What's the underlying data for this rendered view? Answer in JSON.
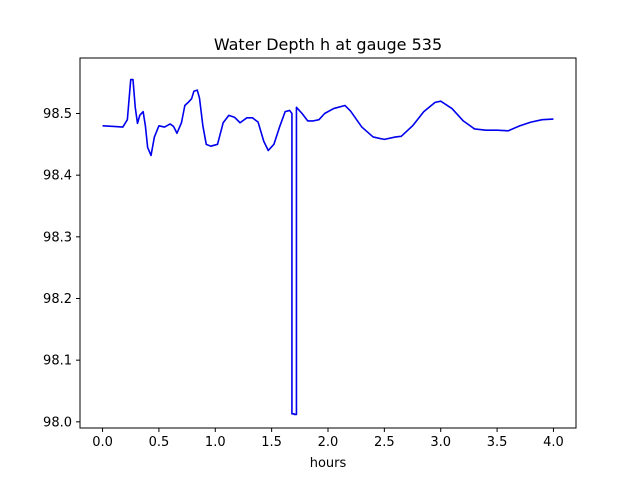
{
  "chart_data": {
    "type": "line",
    "title": "Water Depth h at gauge 535",
    "xlabel": "hours",
    "ylabel": "",
    "xlim": [
      -0.2,
      4.2
    ],
    "ylim": [
      97.99,
      98.59
    ],
    "x_ticks": [
      0.0,
      0.5,
      1.0,
      1.5,
      2.0,
      2.5,
      3.0,
      3.5,
      4.0
    ],
    "x_tick_labels": [
      "0.0",
      "0.5",
      "1.0",
      "1.5",
      "2.0",
      "2.5",
      "3.0",
      "3.5",
      "4.0"
    ],
    "y_ticks": [
      98.0,
      98.1,
      98.2,
      98.3,
      98.4,
      98.5
    ],
    "y_tick_labels": [
      "98.0",
      "98.1",
      "98.2",
      "98.3",
      "98.4",
      "98.5"
    ],
    "grid": false,
    "series": [
      {
        "color": "#0000ee",
        "x": [
          0.0,
          0.1,
          0.18,
          0.22,
          0.25,
          0.27,
          0.29,
          0.31,
          0.33,
          0.36,
          0.38,
          0.4,
          0.43,
          0.46,
          0.5,
          0.55,
          0.6,
          0.63,
          0.66,
          0.7,
          0.73,
          0.76,
          0.79,
          0.81,
          0.84,
          0.86,
          0.89,
          0.92,
          0.96,
          1.02,
          1.07,
          1.12,
          1.17,
          1.22,
          1.28,
          1.33,
          1.38,
          1.43,
          1.47,
          1.52,
          1.57,
          1.62,
          1.66,
          1.68,
          1.68,
          1.7,
          1.7,
          1.72,
          1.72,
          1.77,
          1.82,
          1.87,
          1.92,
          1.97,
          2.05,
          2.15,
          2.2,
          2.3,
          2.4,
          2.5,
          2.6,
          2.65,
          2.75,
          2.85,
          2.95,
          3.0,
          3.1,
          3.2,
          3.3,
          3.4,
          3.5,
          3.6,
          3.7,
          3.8,
          3.9,
          4.0
        ],
        "y": [
          98.48,
          98.479,
          98.478,
          98.49,
          98.555,
          98.555,
          98.51,
          98.484,
          98.497,
          98.503,
          98.48,
          98.445,
          98.432,
          98.462,
          98.48,
          98.478,
          98.483,
          98.479,
          98.468,
          98.485,
          98.513,
          98.518,
          98.524,
          98.536,
          98.538,
          98.525,
          98.48,
          98.45,
          98.447,
          98.45,
          98.485,
          98.497,
          98.494,
          98.485,
          98.493,
          98.493,
          98.486,
          98.455,
          98.44,
          98.45,
          98.478,
          98.503,
          98.505,
          98.5,
          98.013,
          98.013,
          98.012,
          98.012,
          98.51,
          98.5,
          98.488,
          98.488,
          98.49,
          98.5,
          98.508,
          98.513,
          98.504,
          98.478,
          98.462,
          98.458,
          98.462,
          98.463,
          98.48,
          98.503,
          98.518,
          98.52,
          98.508,
          98.488,
          98.475,
          98.473,
          98.473,
          98.472,
          98.48,
          98.486,
          98.49,
          98.491
        ]
      }
    ]
  }
}
